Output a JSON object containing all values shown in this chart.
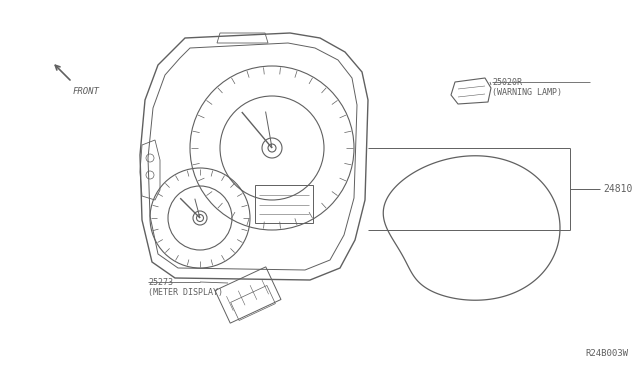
{
  "bg_color": "#ffffff",
  "line_color": "#606060",
  "text_color": "#606060",
  "title_ref": "R24B003W",
  "part_24810": "24810",
  "part_25020R": "25020R\n(WARNING LAMP)",
  "part_25273": "25273\n(METER DISPLAY)",
  "front_label": "FRONT",
  "fig_width": 6.4,
  "fig_height": 3.72,
  "dpi": 100
}
